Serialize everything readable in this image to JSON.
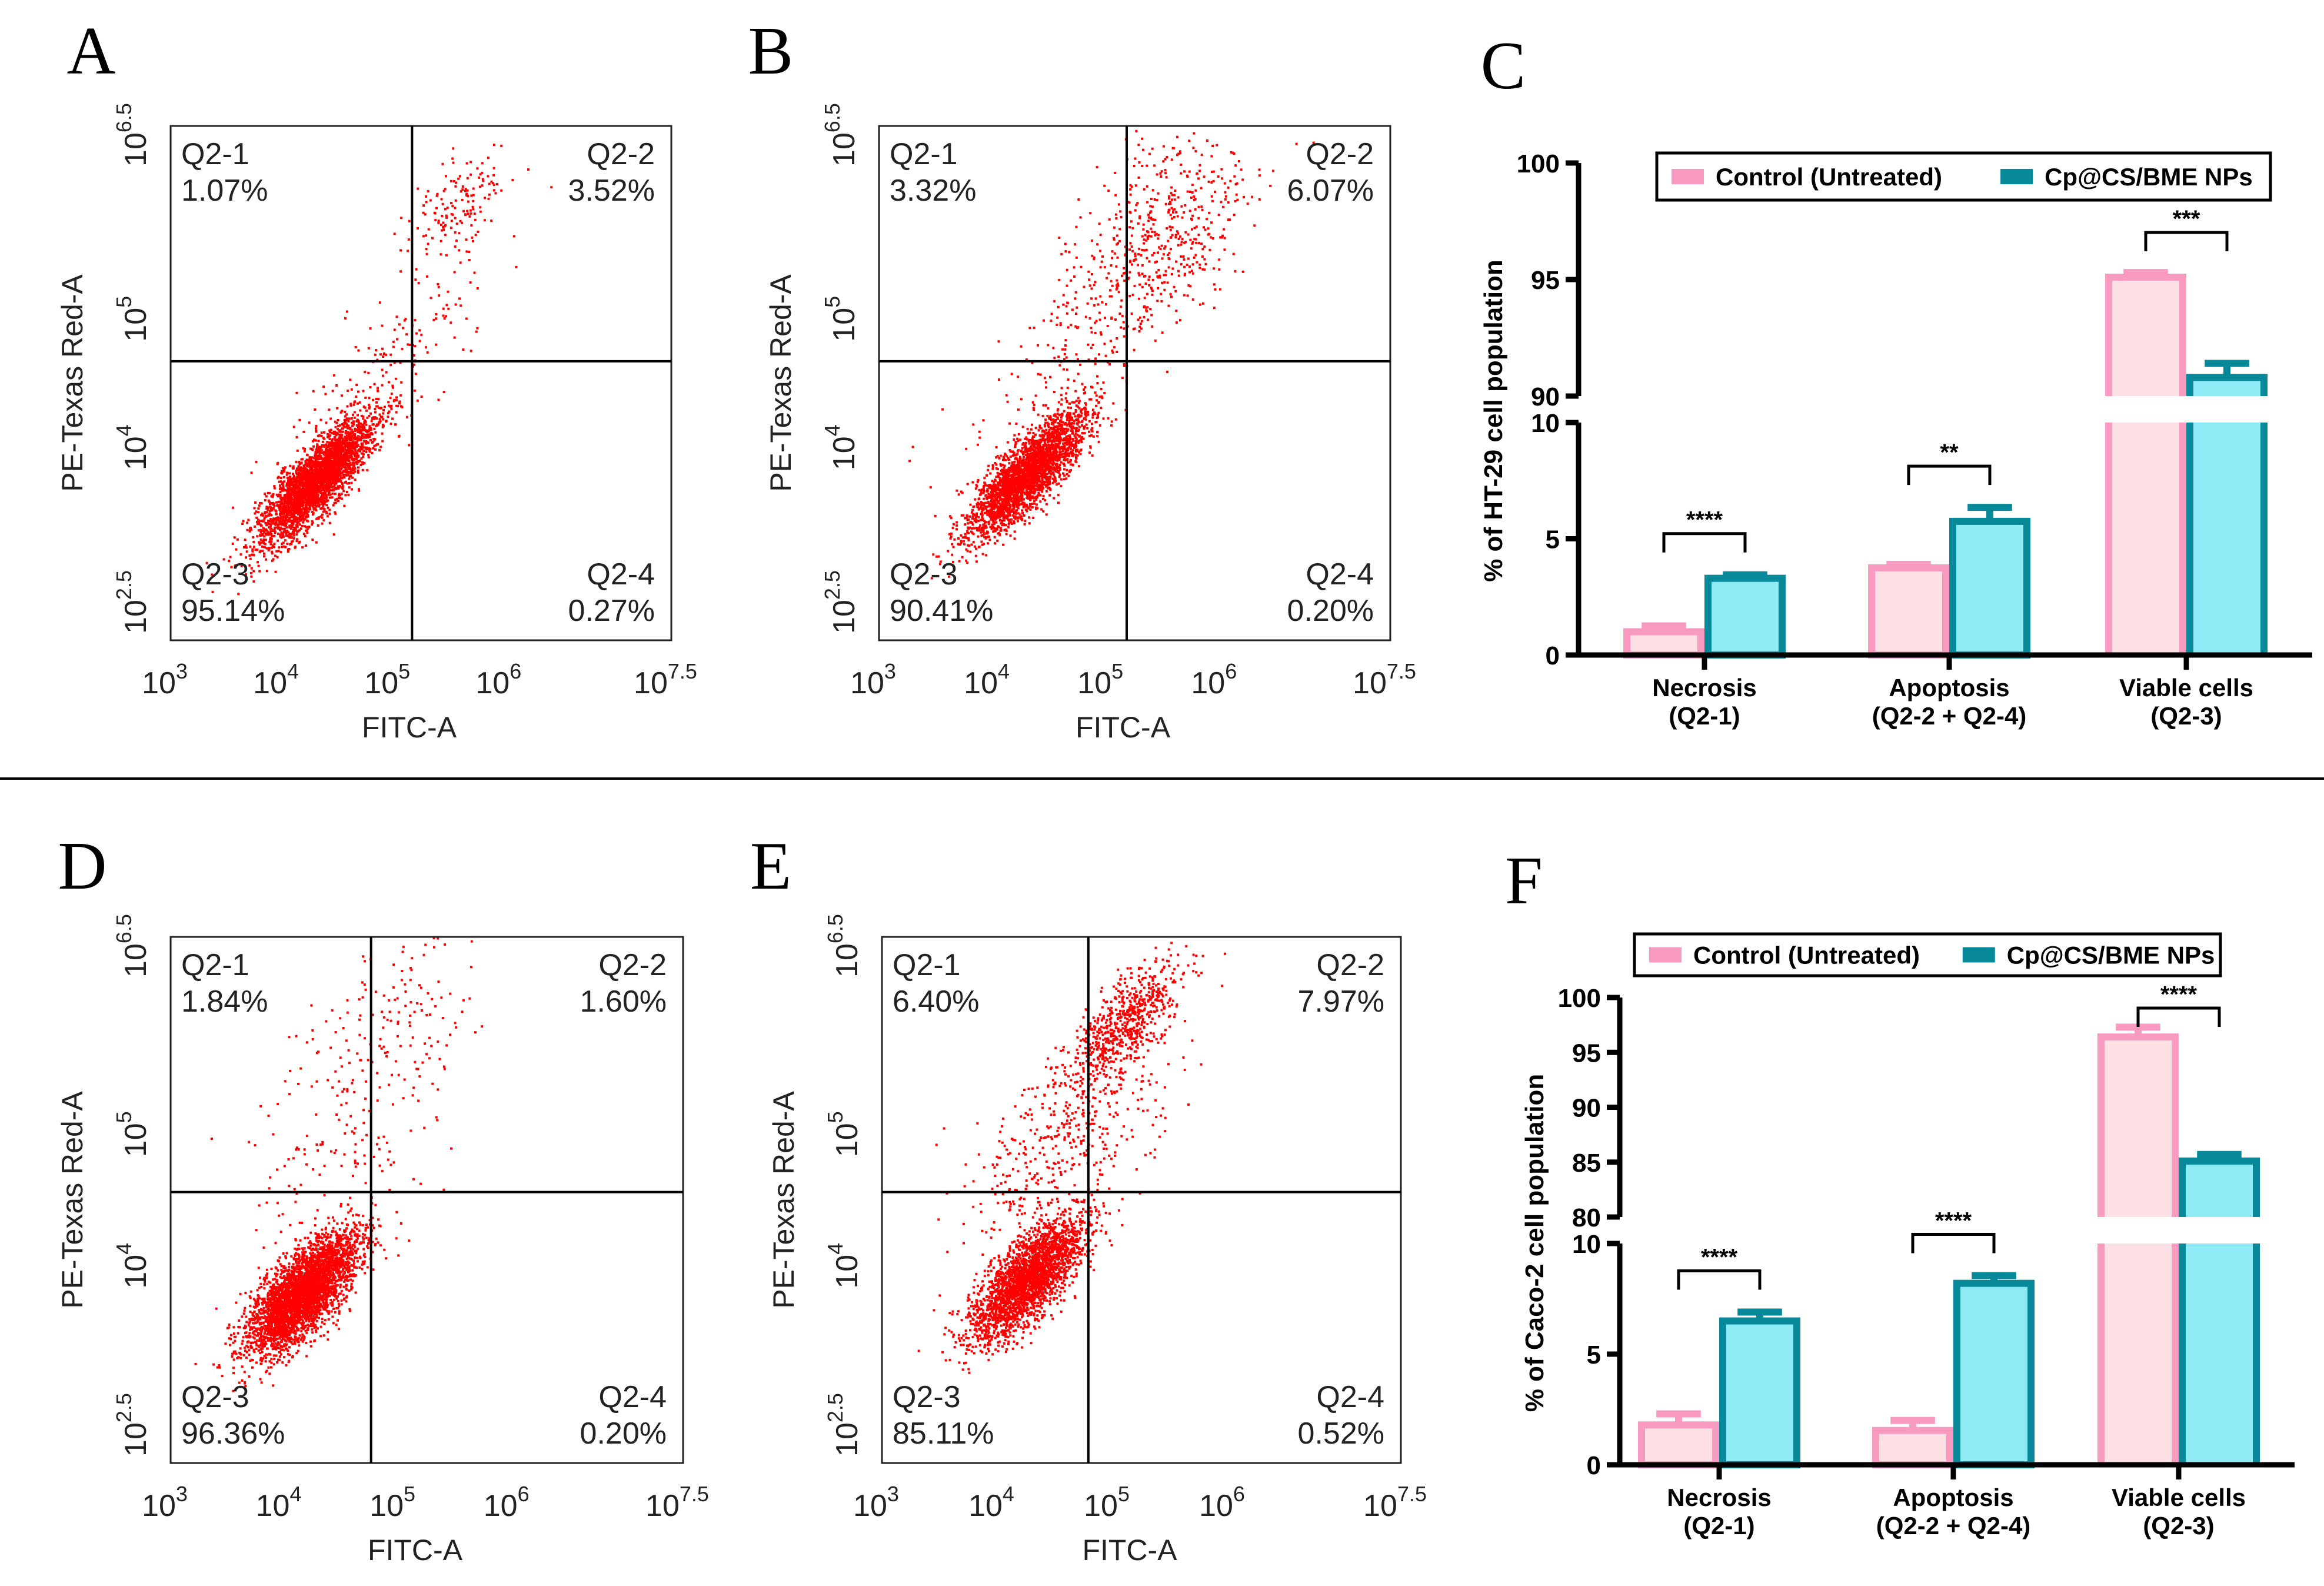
{
  "colors": {
    "dot": "#ff0000",
    "control_fill": "#fde0e4",
    "control_edge": "#f99ac0",
    "np_fill": "#8eeaf5",
    "np_edge": "#08899a"
  },
  "divider": true,
  "chart_data": [
    {
      "type": "scatter",
      "panel": "A",
      "xlabel": "FITC-A",
      "ylabel": "PE-Texas Red-A",
      "x_log_range": [
        3,
        7.5
      ],
      "y_log_range": [
        2.5,
        6.5
      ],
      "x_ticks": [
        {
          "base": "10",
          "exp": "3",
          "v": 3
        },
        {
          "base": "10",
          "exp": "4",
          "v": 4
        },
        {
          "base": "10",
          "exp": "5",
          "v": 5
        },
        {
          "base": "10",
          "exp": "6",
          "v": 6
        },
        {
          "base": "10",
          "exp": "7.5",
          "v": 7.5
        }
      ],
      "y_ticks": [
        {
          "base": "10",
          "exp": "2.5",
          "v": 2.5
        },
        {
          "base": "10",
          "exp": "4",
          "v": 4
        },
        {
          "base": "10",
          "exp": "5",
          "v": 5
        },
        {
          "base": "10",
          "exp": "6.5",
          "v": 6.5
        }
      ],
      "gate": {
        "x": 5.17,
        "y": 4.67
      },
      "quadrants": {
        "q1": {
          "name": "Q2-1",
          "value": "1.07%"
        },
        "q2": {
          "name": "Q2-2",
          "value": "3.52%"
        },
        "q3": {
          "name": "Q2-3",
          "value": "95.14%"
        },
        "q4": {
          "name": "Q2-4",
          "value": "0.27%"
        }
      },
      "clusters": [
        {
          "cx": 4.3,
          "cy": 3.75,
          "sd_major": 0.33,
          "sd_minor": 0.1,
          "n": 3200
        },
        {
          "cx": 5.6,
          "cy": 5.9,
          "sd_major": 0.25,
          "sd_minor": 0.15,
          "n": 150
        },
        {
          "cx": 4.9,
          "cy": 4.6,
          "sd_major": 0.6,
          "sd_minor": 0.2,
          "n": 160
        }
      ]
    },
    {
      "type": "scatter",
      "panel": "B",
      "xlabel": "FITC-A",
      "ylabel": "PE-Texas Red-A",
      "x_log_range": [
        3,
        7.5
      ],
      "y_log_range": [
        2.5,
        6.5
      ],
      "x_ticks": [
        {
          "base": "10",
          "exp": "3",
          "v": 3
        },
        {
          "base": "10",
          "exp": "4",
          "v": 4
        },
        {
          "base": "10",
          "exp": "5",
          "v": 5
        },
        {
          "base": "10",
          "exp": "6",
          "v": 6
        },
        {
          "base": "10",
          "exp": "7.5",
          "v": 7.5
        }
      ],
      "y_ticks": [
        {
          "base": "10",
          "exp": "2.5",
          "v": 2.5
        },
        {
          "base": "10",
          "exp": "4",
          "v": 4
        },
        {
          "base": "10",
          "exp": "5",
          "v": 5
        },
        {
          "base": "10",
          "exp": "6.5",
          "v": 6.5
        }
      ],
      "gate": {
        "x": 5.18,
        "y": 4.67
      },
      "quadrants": {
        "q1": {
          "name": "Q2-1",
          "value": "3.32%"
        },
        "q2": {
          "name": "Q2-2",
          "value": "6.07%"
        },
        "q3": {
          "name": "Q2-3",
          "value": "90.41%"
        },
        "q4": {
          "name": "Q2-4",
          "value": "0.20%"
        }
      },
      "clusters": [
        {
          "cx": 4.3,
          "cy": 3.8,
          "sd_major": 0.33,
          "sd_minor": 0.1,
          "n": 2800
        },
        {
          "cx": 5.5,
          "cy": 5.7,
          "sd_major": 0.45,
          "sd_minor": 0.3,
          "n": 450
        },
        {
          "cx": 4.9,
          "cy": 4.9,
          "sd_major": 0.7,
          "sd_minor": 0.25,
          "n": 250
        }
      ]
    },
    {
      "type": "bar",
      "panel": "C",
      "ylabel": "% of HT-29 cell population",
      "categories": [
        [
          "Necrosis",
          "(Q2-1)"
        ],
        [
          "Apoptosis",
          "(Q2-2 + Q2-4)"
        ],
        [
          "Viable cells",
          "(Q2-3)"
        ]
      ],
      "legend": [
        "Control (Untreated)",
        "Cp@CS/BME NPs"
      ],
      "legend_position": "top",
      "y_segments": [
        [
          0,
          10
        ],
        [
          90,
          100
        ]
      ],
      "y_ticks": [
        "0",
        "5",
        "10",
        "90",
        "95",
        "100"
      ],
      "series": [
        {
          "name": "Control (Untreated)",
          "values": [
            1.0,
            3.75,
            95.1
          ],
          "errors": [
            0.25,
            0.15,
            0.2
          ]
        },
        {
          "name": "Cp@CS/BME NPs",
          "values": [
            3.3,
            5.75,
            90.8
          ],
          "errors": [
            0.15,
            0.6,
            0.6
          ]
        }
      ],
      "significance": [
        "****",
        "**",
        "***"
      ]
    },
    {
      "type": "scatter",
      "panel": "D",
      "xlabel": "FITC-A",
      "ylabel": "PE-Texas Red-A",
      "x_log_range": [
        3,
        7.5
      ],
      "y_log_range": [
        2.5,
        6.5
      ],
      "x_ticks": [
        {
          "base": "10",
          "exp": "3",
          "v": 3
        },
        {
          "base": "10",
          "exp": "4",
          "v": 4
        },
        {
          "base": "10",
          "exp": "5",
          "v": 5
        },
        {
          "base": "10",
          "exp": "6",
          "v": 6
        },
        {
          "base": "10",
          "exp": "7.5",
          "v": 7.5
        }
      ],
      "y_ticks": [
        {
          "base": "10",
          "exp": "2.5",
          "v": 2.5
        },
        {
          "base": "10",
          "exp": "4",
          "v": 4
        },
        {
          "base": "10",
          "exp": "5",
          "v": 5
        },
        {
          "base": "10",
          "exp": "6.5",
          "v": 6.5
        }
      ],
      "gate": {
        "x": 4.76,
        "y": 4.56
      },
      "quadrants": {
        "q1": {
          "name": "Q2-1",
          "value": "1.84%"
        },
        "q2": {
          "name": "Q2-2",
          "value": "1.60%"
        },
        "q3": {
          "name": "Q2-3",
          "value": "96.36%"
        },
        "q4": {
          "name": "Q2-4",
          "value": "0.20%"
        }
      },
      "clusters": [
        {
          "cx": 4.15,
          "cy": 3.8,
          "sd_major": 0.3,
          "sd_minor": 0.12,
          "n": 3600
        },
        {
          "cx": 4.8,
          "cy": 5.8,
          "sd_major": 0.5,
          "sd_minor": 0.3,
          "n": 160
        },
        {
          "cx": 4.6,
          "cy": 4.9,
          "sd_major": 0.5,
          "sd_minor": 0.3,
          "n": 120
        }
      ]
    },
    {
      "type": "scatter",
      "panel": "E",
      "xlabel": "FITC-A",
      "ylabel": "PE-Texas Red-A",
      "x_log_range": [
        3,
        7.5
      ],
      "y_log_range": [
        2.5,
        6.5
      ],
      "x_ticks": [
        {
          "base": "10",
          "exp": "3",
          "v": 3
        },
        {
          "base": "10",
          "exp": "4",
          "v": 4
        },
        {
          "base": "10",
          "exp": "5",
          "v": 5
        },
        {
          "base": "10",
          "exp": "6",
          "v": 6
        },
        {
          "base": "10",
          "exp": "7.5",
          "v": 7.5
        }
      ],
      "y_ticks": [
        {
          "base": "10",
          "exp": "2.5",
          "v": 2.5
        },
        {
          "base": "10",
          "exp": "4",
          "v": 4
        },
        {
          "base": "10",
          "exp": "5",
          "v": 5
        },
        {
          "base": "10",
          "exp": "6.5",
          "v": 6.5
        }
      ],
      "gate": {
        "x": 4.79,
        "y": 4.56
      },
      "quadrants": {
        "q1": {
          "name": "Q2-1",
          "value": "6.40%"
        },
        "q2": {
          "name": "Q2-2",
          "value": "7.97%"
        },
        "q3": {
          "name": "Q2-3",
          "value": "85.11%"
        },
        "q4": {
          "name": "Q2-4",
          "value": "0.52%"
        }
      },
      "clusters": [
        {
          "cx": 4.25,
          "cy": 3.9,
          "sd_major": 0.3,
          "sd_minor": 0.12,
          "n": 2600
        },
        {
          "cx": 5.1,
          "cy": 5.85,
          "sd_major": 0.3,
          "sd_minor": 0.12,
          "n": 650
        },
        {
          "cx": 4.6,
          "cy": 5.0,
          "sd_major": 0.55,
          "sd_minor": 0.25,
          "n": 450
        }
      ]
    },
    {
      "type": "bar",
      "panel": "F",
      "ylabel": "% of Caco-2 cell population",
      "categories": [
        [
          "Necrosis",
          "(Q2-1)"
        ],
        [
          "Apoptosis",
          "(Q2-2 + Q2-4)"
        ],
        [
          "Viable cells",
          "(Q2-3)"
        ]
      ],
      "legend": [
        "Control (Untreated)",
        "Cp@CS/BME NPs"
      ],
      "legend_position": "top",
      "y_segments": [
        [
          0,
          10
        ],
        [
          80,
          100
        ]
      ],
      "y_ticks": [
        "0",
        "5",
        "10",
        "80",
        "85",
        "90",
        "95",
        "100"
      ],
      "series": [
        {
          "name": "Control (Untreated)",
          "values": [
            1.8,
            1.55,
            96.4
          ],
          "errors": [
            0.5,
            0.45,
            0.9
          ]
        },
        {
          "name": "Cp@CS/BME NPs",
          "values": [
            6.5,
            8.2,
            85.1
          ],
          "errors": [
            0.4,
            0.35,
            0.6
          ]
        }
      ],
      "significance": [
        "****",
        "****",
        "****"
      ]
    }
  ]
}
